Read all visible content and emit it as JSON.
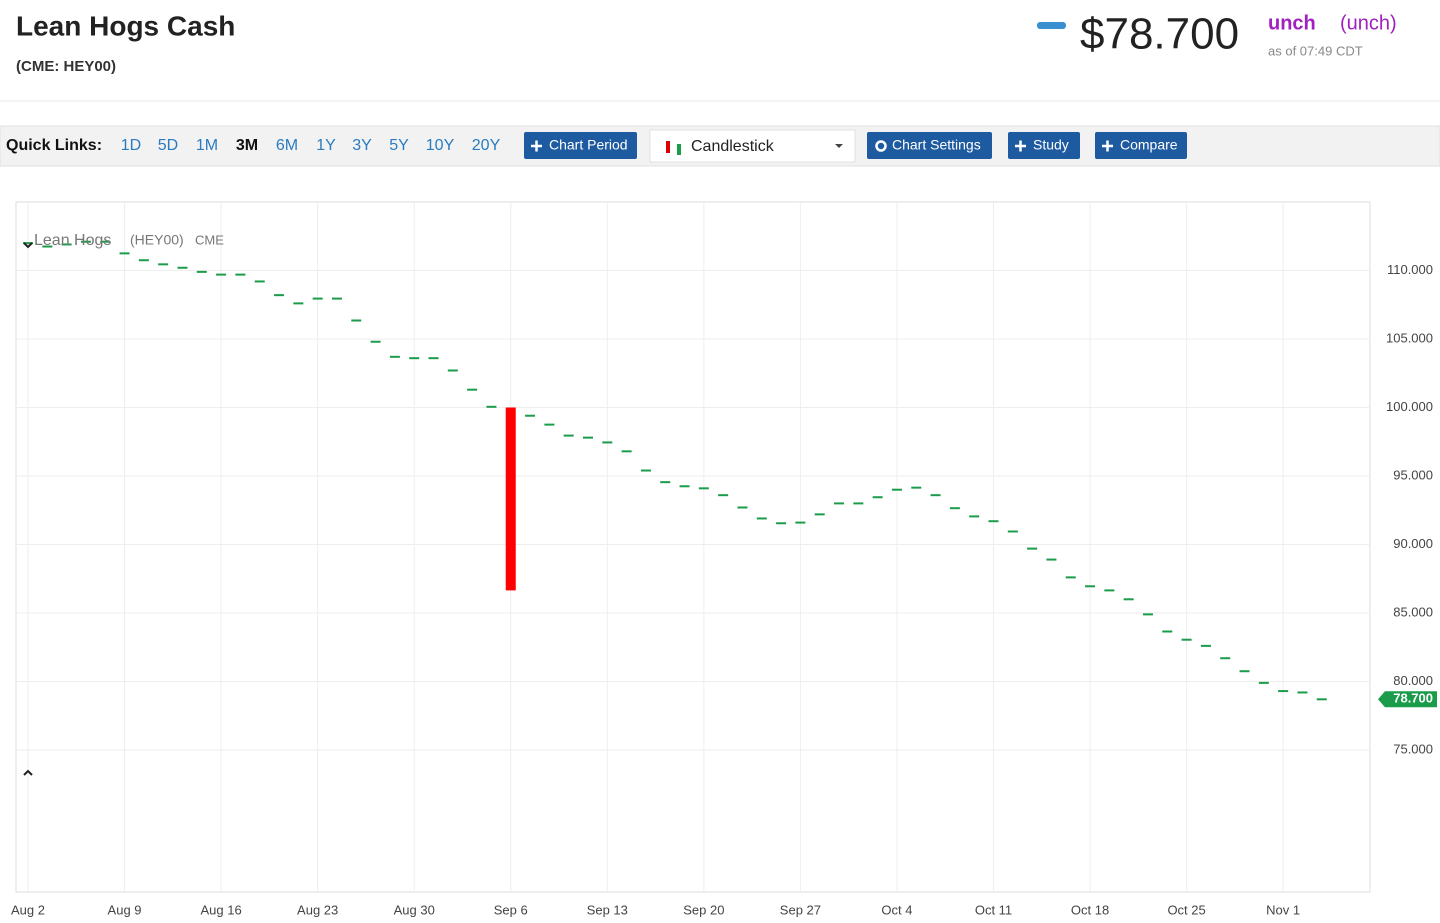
{
  "header": {
    "title": "Lean Hogs Cash",
    "symbol": "(CME: HEY00)",
    "price": "$78.700",
    "change": "unch",
    "change_pct": "(unch)",
    "timestamp": "as of 07:49 CDT"
  },
  "toolbar": {
    "label": "Quick Links:",
    "periods": [
      "1D",
      "5D",
      "1M",
      "3M",
      "6M",
      "1Y",
      "3Y",
      "5Y",
      "10Y",
      "20Y"
    ],
    "active_period": "3M",
    "chart_period": "Chart Period",
    "chart_type": "Candlestick",
    "chart_settings": "Chart Settings",
    "study": "Study",
    "compare": "Compare"
  },
  "chart_data": {
    "type": "candlestick",
    "legend": {
      "name": "Lean Hogs",
      "symbol": "(HEY00)",
      "exchange": "CME"
    },
    "categories": [
      "Aug 2",
      null,
      null,
      null,
      null,
      "Aug 9",
      null,
      null,
      null,
      null,
      "Aug 16",
      null,
      null,
      null,
      null,
      "Aug 23",
      null,
      null,
      null,
      null,
      "Aug 30",
      null,
      null,
      null,
      null,
      "Sep 6",
      null,
      null,
      null,
      null,
      "Sep 13",
      null,
      null,
      null,
      null,
      "Sep 20",
      null,
      null,
      null,
      null,
      "Sep 27",
      null,
      null,
      null,
      null,
      "Oct 4",
      null,
      null,
      null,
      null,
      "Oct 11",
      null,
      null,
      null,
      null,
      "Oct 18",
      null,
      null,
      null,
      null,
      "Oct 25",
      null,
      null,
      null,
      null,
      "Nov 1",
      null,
      null
    ],
    "open": [
      112.0,
      111.75,
      111.9,
      112.1,
      112.1,
      111.25,
      110.75,
      110.45,
      110.2,
      109.9,
      109.7,
      109.7,
      109.2,
      108.2,
      107.6,
      107.95,
      107.95,
      106.35,
      104.8,
      103.7,
      103.6,
      103.6,
      102.7,
      101.3,
      100.05,
      100.0,
      99.4,
      98.75,
      97.95,
      97.8,
      97.45,
      96.8,
      95.4,
      94.55,
      94.25,
      94.1,
      93.6,
      92.7,
      91.9,
      91.55,
      91.6,
      92.2,
      93.0,
      93.0,
      93.45,
      94.0,
      94.15,
      93.6,
      92.65,
      92.05,
      91.7,
      90.95,
      89.7,
      88.9,
      87.6,
      86.95,
      86.65,
      86.0,
      84.9,
      83.65,
      83.05,
      82.6,
      81.7,
      80.75,
      79.9,
      79.3,
      79.2,
      78.7
    ],
    "close": [
      112.0,
      111.75,
      111.9,
      112.1,
      112.1,
      111.25,
      110.75,
      110.45,
      110.2,
      109.9,
      109.7,
      109.7,
      109.2,
      108.2,
      107.6,
      107.95,
      107.95,
      106.35,
      104.8,
      103.7,
      103.6,
      103.6,
      102.7,
      101.3,
      100.05,
      86.65,
      99.4,
      98.75,
      97.95,
      97.8,
      97.45,
      96.8,
      95.4,
      94.55,
      94.25,
      94.1,
      93.6,
      92.7,
      91.9,
      91.55,
      91.6,
      92.2,
      93.0,
      93.0,
      93.45,
      94.0,
      94.15,
      93.6,
      92.65,
      92.05,
      91.7,
      90.95,
      89.7,
      88.9,
      87.6,
      86.95,
      86.65,
      86.0,
      84.9,
      83.65,
      83.05,
      82.6,
      81.7,
      80.75,
      79.9,
      79.3,
      79.2,
      78.7
    ],
    "last_label": "78.700",
    "up_color": "#1a9c4a",
    "down_color": "#ff0000",
    "ylim": [
      65,
      115
    ],
    "yticks": [
      {
        "value": 75,
        "label": "75.000"
      },
      {
        "value": 80,
        "label": "80.000"
      },
      {
        "value": 85,
        "label": "85.000"
      },
      {
        "value": 90,
        "label": "90.000"
      },
      {
        "value": 95,
        "label": "95.000"
      },
      {
        "value": 100,
        "label": "100.000"
      },
      {
        "value": 105,
        "label": "105.000"
      },
      {
        "value": 110,
        "label": "110.000"
      }
    ],
    "grid": true
  }
}
